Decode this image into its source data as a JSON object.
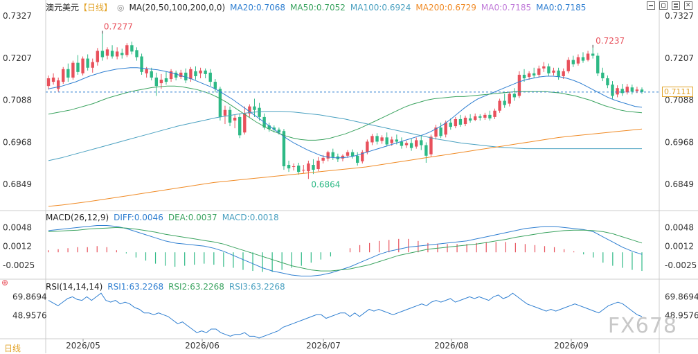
{
  "chart_data": {
    "type": "candlestick",
    "symbol": "澳元美元",
    "period_tag": "【日线】",
    "period_bottom": "日线",
    "x_ticks": [
      "2026/05",
      "2026/06",
      "2026/07",
      "2026/08",
      "2026/09"
    ],
    "price_axis": {
      "ticks": [
        "0.7327",
        "0.7207",
        "0.7088",
        "0.6968",
        "0.6849"
      ],
      "ylim": [
        0.6778,
        0.7337
      ]
    },
    "last_price": "0.7111",
    "high_label": "0.7277",
    "low_label": "0.6864",
    "recent_high_label": "0.7237",
    "ma_header": "MA(20,50,100,200,0,0)",
    "ma_values": [
      {
        "label": "MA20:0.7068",
        "color": "#2f7fd1"
      },
      {
        "label": "MA50:0.7052",
        "color": "#3aa35f"
      },
      {
        "label": "MA100:0.6924",
        "color": "#49a0c0"
      },
      {
        "label": "MA200:0.6729",
        "color": "#f08a24"
      },
      {
        "label": "MA0:0.7185",
        "color": "#c07bd9"
      },
      {
        "label": "MA0:0.7185",
        "color": "#2f7fd1"
      }
    ],
    "candles": [
      [
        0.7128,
        0.7158,
        0.715,
        0.7118
      ],
      [
        0.714,
        0.7164,
        0.7152,
        0.7132
      ],
      [
        0.712,
        0.7152,
        0.7144,
        0.7112
      ],
      [
        0.714,
        0.7182,
        0.7176,
        0.7134
      ],
      [
        0.7176,
        0.7192,
        0.7152,
        0.714
      ],
      [
        0.7152,
        0.72,
        0.7194,
        0.7146
      ],
      [
        0.7194,
        0.7216,
        0.7168,
        0.716
      ],
      [
        0.7164,
        0.7212,
        0.7206,
        0.7158
      ],
      [
        0.7206,
        0.7218,
        0.718,
        0.7172
      ],
      [
        0.718,
        0.7206,
        0.7196,
        0.7166
      ],
      [
        0.7196,
        0.7236,
        0.7228,
        0.7186
      ],
      [
        0.7228,
        0.7277,
        0.721,
        0.72
      ],
      [
        0.7214,
        0.7238,
        0.7232,
        0.7204
      ],
      [
        0.7228,
        0.7244,
        0.7212,
        0.7206
      ],
      [
        0.7212,
        0.7238,
        0.7226,
        0.7204
      ],
      [
        0.7222,
        0.7234,
        0.7216,
        0.7206
      ],
      [
        0.7216,
        0.725,
        0.7244,
        0.721
      ],
      [
        0.7244,
        0.7254,
        0.7226,
        0.7218
      ],
      [
        0.723,
        0.7238,
        0.721,
        0.72
      ],
      [
        0.7212,
        0.722,
        0.7168,
        0.716
      ],
      [
        0.7164,
        0.7182,
        0.7176,
        0.7152
      ],
      [
        0.717,
        0.718,
        0.7152,
        0.7144
      ],
      [
        0.7152,
        0.7166,
        0.7128,
        0.71
      ],
      [
        0.7136,
        0.7162,
        0.7146,
        0.712
      ],
      [
        0.715,
        0.7168,
        0.714,
        0.7132
      ],
      [
        0.7148,
        0.7176,
        0.717,
        0.714
      ],
      [
        0.7166,
        0.7172,
        0.7152,
        0.7144
      ],
      [
        0.7154,
        0.7174,
        0.7166,
        0.7148
      ],
      [
        0.7166,
        0.7178,
        0.7144,
        0.7136
      ],
      [
        0.7148,
        0.7182,
        0.7176,
        0.714
      ],
      [
        0.717,
        0.7184,
        0.7156,
        0.7146
      ],
      [
        0.7164,
        0.718,
        0.7172,
        0.715
      ],
      [
        0.7172,
        0.7178,
        0.7162,
        0.715
      ],
      [
        0.7166,
        0.7176,
        0.714,
        0.7128
      ],
      [
        0.714,
        0.7148,
        0.712,
        0.711
      ],
      [
        0.712,
        0.7126,
        0.704,
        0.703
      ],
      [
        0.7044,
        0.7072,
        0.706,
        0.702
      ],
      [
        0.706,
        0.707,
        0.7024,
        0.7014
      ],
      [
        0.703,
        0.7046,
        0.7038,
        0.7008
      ],
      [
        0.704,
        0.705,
        0.6988,
        0.698
      ],
      [
        0.6996,
        0.707,
        0.705,
        0.699
      ],
      [
        0.705,
        0.7076,
        0.707,
        0.704
      ],
      [
        0.707,
        0.7092,
        0.706,
        0.704
      ],
      [
        0.7066,
        0.708,
        0.704,
        0.703
      ],
      [
        0.704,
        0.705,
        0.701,
        0.7004
      ],
      [
        0.7016,
        0.7024,
        0.7006,
        0.6998
      ],
      [
        0.701,
        0.7016,
        0.7004,
        0.6996
      ],
      [
        0.7004,
        0.701,
        0.6996,
        0.699
      ],
      [
        0.7,
        0.7006,
        0.69,
        0.689
      ],
      [
        0.6904,
        0.6916,
        0.6894,
        0.6884
      ],
      [
        0.6898,
        0.6908,
        0.69,
        0.6888
      ],
      [
        0.6902,
        0.691,
        0.6884,
        0.6876
      ],
      [
        0.6888,
        0.6904,
        0.689,
        0.688
      ],
      [
        0.6886,
        0.6916,
        0.6908,
        0.6864
      ],
      [
        0.6904,
        0.692,
        0.689,
        0.6878
      ],
      [
        0.6892,
        0.6926,
        0.6916,
        0.6886
      ],
      [
        0.6916,
        0.6932,
        0.6924,
        0.6908
      ],
      [
        0.6922,
        0.6944,
        0.694,
        0.6914
      ],
      [
        0.694,
        0.695,
        0.6926,
        0.6918
      ],
      [
        0.6928,
        0.6936,
        0.692,
        0.6912
      ],
      [
        0.6922,
        0.6934,
        0.693,
        0.6914
      ],
      [
        0.693,
        0.6946,
        0.694,
        0.6924
      ],
      [
        0.694,
        0.6948,
        0.6928,
        0.6922
      ],
      [
        0.693,
        0.694,
        0.691,
        0.6902
      ],
      [
        0.6914,
        0.6946,
        0.694,
        0.6908
      ],
      [
        0.694,
        0.6976,
        0.697,
        0.6934
      ],
      [
        0.6968,
        0.6992,
        0.6986,
        0.696
      ],
      [
        0.6986,
        0.6994,
        0.697,
        0.6962
      ],
      [
        0.6972,
        0.6988,
        0.6982,
        0.6964
      ],
      [
        0.6982,
        0.6996,
        0.6962,
        0.6956
      ],
      [
        0.6966,
        0.6984,
        0.6976,
        0.6958
      ],
      [
        0.6976,
        0.699,
        0.697,
        0.6962
      ],
      [
        0.697,
        0.6982,
        0.6958,
        0.695
      ],
      [
        0.696,
        0.6972,
        0.6966,
        0.6952
      ],
      [
        0.6966,
        0.6978,
        0.6952,
        0.6944
      ],
      [
        0.6956,
        0.6982,
        0.6974,
        0.695
      ],
      [
        0.6974,
        0.6988,
        0.696,
        0.6946
      ],
      [
        0.696,
        0.6968,
        0.693,
        0.691
      ],
      [
        0.6934,
        0.699,
        0.6984,
        0.6926
      ],
      [
        0.6984,
        0.7018,
        0.701,
        0.6976
      ],
      [
        0.701,
        0.7024,
        0.6986,
        0.698
      ],
      [
        0.699,
        0.703,
        0.7024,
        0.6982
      ],
      [
        0.7024,
        0.7036,
        0.7012,
        0.7004
      ],
      [
        0.7014,
        0.704,
        0.7034,
        0.7008
      ],
      [
        0.7034,
        0.7046,
        0.7018,
        0.7012
      ],
      [
        0.702,
        0.7044,
        0.7038,
        0.7014
      ],
      [
        0.7036,
        0.7048,
        0.703,
        0.7024
      ],
      [
        0.7032,
        0.705,
        0.7042,
        0.7028
      ],
      [
        0.7042,
        0.7048,
        0.7038,
        0.703
      ],
      [
        0.7038,
        0.7052,
        0.7046,
        0.7032
      ],
      [
        0.7046,
        0.7058,
        0.7036,
        0.703
      ],
      [
        0.704,
        0.7064,
        0.7058,
        0.7034
      ],
      [
        0.7058,
        0.7092,
        0.7086,
        0.7052
      ],
      [
        0.7086,
        0.7106,
        0.7074,
        0.7066
      ],
      [
        0.7078,
        0.7112,
        0.7106,
        0.707
      ],
      [
        0.7106,
        0.7122,
        0.7096,
        0.7086
      ],
      [
        0.71,
        0.717,
        0.716,
        0.7094
      ],
      [
        0.716,
        0.7176,
        0.715,
        0.714
      ],
      [
        0.7154,
        0.717,
        0.7164,
        0.7146
      ],
      [
        0.7164,
        0.718,
        0.7158,
        0.715
      ],
      [
        0.716,
        0.7186,
        0.7178,
        0.7152
      ],
      [
        0.7178,
        0.7196,
        0.7184,
        0.7168
      ],
      [
        0.7184,
        0.7192,
        0.7164,
        0.7156
      ],
      [
        0.7166,
        0.718,
        0.7172,
        0.7158
      ],
      [
        0.7172,
        0.718,
        0.7154,
        0.7146
      ],
      [
        0.7156,
        0.7178,
        0.717,
        0.7148
      ],
      [
        0.717,
        0.721,
        0.7202,
        0.7164
      ],
      [
        0.7202,
        0.7214,
        0.719,
        0.7182
      ],
      [
        0.7192,
        0.7218,
        0.721,
        0.7186
      ],
      [
        0.721,
        0.7224,
        0.72,
        0.7194
      ],
      [
        0.7202,
        0.7228,
        0.722,
        0.7198
      ],
      [
        0.722,
        0.7237,
        0.7214,
        0.7206
      ],
      [
        0.7214,
        0.7222,
        0.7164,
        0.7156
      ],
      [
        0.7166,
        0.718,
        0.715,
        0.7142
      ],
      [
        0.715,
        0.7158,
        0.713,
        0.7122
      ],
      [
        0.7132,
        0.7142,
        0.71,
        0.7092
      ],
      [
        0.7104,
        0.713,
        0.7122,
        0.7096
      ],
      [
        0.712,
        0.7134,
        0.7108,
        0.71
      ],
      [
        0.711,
        0.7134,
        0.7126,
        0.7104
      ],
      [
        0.7124,
        0.7132,
        0.7112,
        0.7104
      ],
      [
        0.7114,
        0.7126,
        0.7118,
        0.7108
      ],
      [
        0.7118,
        0.7124,
        0.7111,
        0.7106
      ]
    ],
    "ma20": [
      0.712,
      0.7124,
      0.7128,
      0.7134,
      0.714,
      0.7148,
      0.7156,
      0.7162,
      0.7168,
      0.7172,
      0.7176,
      0.7178,
      0.718,
      0.718,
      0.7178,
      0.7176,
      0.7174,
      0.717,
      0.7166,
      0.716,
      0.7154,
      0.7148,
      0.714,
      0.7132,
      0.7124,
      0.7114,
      0.7102,
      0.709,
      0.7076,
      0.7062,
      0.7048,
      0.7034,
      0.702,
      0.7006,
      0.6992,
      0.6978,
      0.6966,
      0.6956,
      0.6946,
      0.6938,
      0.693,
      0.6926,
      0.6924,
      0.6924,
      0.6926,
      0.693,
      0.6936,
      0.6942,
      0.6948,
      0.6954,
      0.696,
      0.6966,
      0.6972,
      0.6978,
      0.6984,
      0.699,
      0.6998,
      0.7008,
      0.702,
      0.7034,
      0.705,
      0.7066,
      0.708,
      0.7092,
      0.71,
      0.7108,
      0.7116,
      0.7124,
      0.7132,
      0.714,
      0.7146,
      0.715,
      0.7154,
      0.7156,
      0.7156,
      0.7154,
      0.715,
      0.7144,
      0.7136,
      0.7126,
      0.7116,
      0.7106,
      0.7096,
      0.7088,
      0.7082,
      0.7076,
      0.707,
      0.7068
    ],
    "ma50": [
      0.7048,
      0.7052,
      0.7056,
      0.706,
      0.7066,
      0.7072,
      0.7078,
      0.7086,
      0.7094,
      0.71,
      0.7106,
      0.7112,
      0.7116,
      0.712,
      0.7124,
      0.7126,
      0.7128,
      0.7128,
      0.7126,
      0.7122,
      0.7118,
      0.7112,
      0.7104,
      0.7094,
      0.7082,
      0.7068,
      0.7054,
      0.704,
      0.7026,
      0.7014,
      0.7002,
      0.6994,
      0.6986,
      0.698,
      0.6976,
      0.6974,
      0.6974,
      0.6976,
      0.698,
      0.6986,
      0.6992,
      0.7,
      0.7008,
      0.7018,
      0.7028,
      0.7038,
      0.7048,
      0.7058,
      0.7068,
      0.7076,
      0.7082,
      0.7088,
      0.7092,
      0.7094,
      0.7096,
      0.7098,
      0.7098,
      0.71,
      0.7102,
      0.7104,
      0.7106,
      0.7108,
      0.711,
      0.7112,
      0.7112,
      0.7112,
      0.7112,
      0.7112,
      0.711,
      0.7108,
      0.7104,
      0.71,
      0.7094,
      0.7088,
      0.708,
      0.7072,
      0.7066,
      0.706,
      0.7056,
      0.7054,
      0.7052
    ],
    "ma100": [
      0.6916,
      0.6924,
      0.6934,
      0.6944,
      0.6954,
      0.6964,
      0.6974,
      0.6984,
      0.6994,
      0.7004,
      0.7014,
      0.7022,
      0.703,
      0.7038,
      0.7044,
      0.705,
      0.7054,
      0.7056,
      0.7056,
      0.7054,
      0.705,
      0.7046,
      0.704,
      0.7034,
      0.7026,
      0.7018,
      0.701,
      0.7002,
      0.6994,
      0.6986,
      0.6978,
      0.6972,
      0.6966,
      0.6962,
      0.6958,
      0.6954,
      0.6952,
      0.695,
      0.695,
      0.695,
      0.695,
      0.695,
      0.695,
      0.695,
      0.695,
      0.695,
      0.695
    ],
    "ma200": [
      0.6786,
      0.679,
      0.6795,
      0.68,
      0.6806,
      0.6812,
      0.6818,
      0.6824,
      0.683,
      0.6836,
      0.6842,
      0.6848,
      0.6854,
      0.6858,
      0.6862,
      0.6866,
      0.687,
      0.6874,
      0.6878,
      0.6882,
      0.6886,
      0.689,
      0.6894,
      0.6898,
      0.6904,
      0.691,
      0.6916,
      0.6922,
      0.6928,
      0.6934,
      0.694,
      0.6946,
      0.6952,
      0.6958,
      0.6964,
      0.697,
      0.6976,
      0.6982,
      0.6986,
      0.699,
      0.6994,
      0.6998,
      0.7002,
      0.7006
    ],
    "macd_header": "MACD(26,12,9)",
    "macd_labels": [
      {
        "text": "DIFF:0.0046",
        "color": "#2f7fd1"
      },
      {
        "text": "DEA:0.0037",
        "color": "#3aa35f"
      },
      {
        "text": "MACD:0.0018",
        "color": "#49a0c0"
      }
    ],
    "macd_ticks": [
      "0.0048",
      "0.0012",
      "-0.0025"
    ],
    "macd_ylim": [
      -0.0048,
      0.0062
    ],
    "diff": [
      0.0042,
      0.0044,
      0.0046,
      0.0048,
      0.005,
      0.0052,
      0.0052,
      0.005,
      0.0046,
      0.004,
      0.0034,
      0.0028,
      0.0022,
      0.0018,
      0.0016,
      0.0014,
      0.0012,
      0.0008,
      0.0002,
      -0.0006,
      -0.0014,
      -0.0022,
      -0.003,
      -0.0036,
      -0.004,
      -0.0044,
      -0.0046,
      -0.0046,
      -0.0044,
      -0.004,
      -0.0034,
      -0.0028,
      -0.002,
      -0.0012,
      -0.0004,
      0.0002,
      0.0006,
      0.001,
      0.0012,
      0.0014,
      0.0016,
      0.0018,
      0.002,
      0.0022,
      0.0026,
      0.003,
      0.0034,
      0.0038,
      0.0042,
      0.0046,
      0.0048,
      0.005,
      0.005,
      0.0048,
      0.0046,
      0.0044,
      0.004,
      0.003,
      0.002,
      0.001,
      0.0002,
      -0.0004
    ],
    "dea": [
      0.004,
      0.0041,
      0.0042,
      0.0043,
      0.0045,
      0.0046,
      0.0047,
      0.0048,
      0.0047,
      0.0045,
      0.0042,
      0.0039,
      0.0035,
      0.0032,
      0.0029,
      0.0026,
      0.0023,
      0.002,
      0.0016,
      0.001,
      0.0004,
      -0.0002,
      -0.0008,
      -0.0014,
      -0.002,
      -0.0026,
      -0.003,
      -0.0034,
      -0.0036,
      -0.0036,
      -0.0034,
      -0.0032,
      -0.0028,
      -0.0024,
      -0.0018,
      -0.0012,
      -0.0006,
      -0.0002,
      0.0002,
      0.0006,
      0.0008,
      0.001,
      0.0012,
      0.0014,
      0.0016,
      0.0019,
      0.0022,
      0.0025,
      0.0029,
      0.0032,
      0.0035,
      0.0038,
      0.004,
      0.0042,
      0.0043,
      0.0043,
      0.0042,
      0.004,
      0.0036,
      0.003,
      0.0024,
      0.0018
    ],
    "hist": [
      0.0004,
      0.0006,
      0.0008,
      0.001,
      0.001,
      0.0012,
      0.001,
      0.0004,
      -0.0002,
      -0.001,
      -0.0016,
      -0.0022,
      -0.0026,
      -0.0028,
      -0.0026,
      -0.0024,
      -0.0022,
      -0.0024,
      -0.0028,
      -0.003,
      -0.0034,
      -0.0036,
      -0.0038,
      -0.0038,
      -0.0034,
      -0.003,
      -0.0026,
      -0.002,
      -0.0014,
      -0.0008,
      0.0,
      0.0008,
      0.0014,
      0.0018,
      0.0022,
      0.0024,
      0.0026,
      0.0026,
      0.0022,
      0.0018,
      0.0016,
      0.0016,
      0.0016,
      0.0016,
      0.0018,
      0.002,
      0.002,
      0.002,
      0.0018,
      0.0016,
      0.0014,
      0.0012,
      0.001,
      0.0006,
      0.0002,
      -0.0004,
      -0.001,
      -0.002,
      -0.0026,
      -0.003,
      -0.0034,
      -0.0036
    ],
    "rsi_header": "RSI(14,14,14)",
    "rsi_labels": [
      {
        "text": "RSI1:63.2268",
        "color": "#2f7fd1"
      },
      {
        "text": "RSI2:63.2268",
        "color": "#3aa35f"
      },
      {
        "text": "RSI3:63.2268",
        "color": "#49a0c0"
      }
    ],
    "rsi_ticks": [
      "69.8694",
      "48.9576"
    ],
    "rsi_ylim": [
      24,
      78
    ],
    "rsi": [
      66,
      63,
      60,
      64,
      68,
      70,
      67,
      66,
      70,
      66,
      70,
      74,
      66,
      64,
      66,
      62,
      64,
      62,
      58,
      56,
      52,
      52,
      50,
      52,
      50,
      48,
      44,
      40,
      42,
      38,
      34,
      30,
      32,
      30,
      34,
      34,
      30,
      28,
      26,
      28,
      28,
      30,
      26,
      26,
      24,
      26,
      28,
      30,
      32,
      36,
      38,
      40,
      42,
      44,
      46,
      48,
      50,
      50,
      46,
      48,
      50,
      52,
      52,
      48,
      52,
      48,
      52,
      56,
      54,
      56,
      54,
      52,
      50,
      52,
      54,
      56,
      58,
      60,
      62,
      60,
      64,
      66,
      64,
      66,
      68,
      64,
      66,
      68,
      70,
      68,
      70,
      68,
      66,
      70,
      72,
      68,
      70,
      74,
      70,
      66,
      62,
      60,
      58,
      56,
      54,
      56,
      54,
      56,
      58,
      60,
      62,
      60,
      58,
      56,
      54,
      52,
      56,
      60,
      62,
      64,
      62,
      58,
      54,
      50,
      48
    ]
  },
  "toolbar": {
    "icons": [
      "minimize-icon",
      "maximize-icon",
      "layout-icon",
      "close-icon"
    ]
  },
  "watermark": "FX678",
  "colors": {
    "up": "#e8505b",
    "down": "#2db985",
    "grid": "#e3e3e3",
    "axis_text": "#333333"
  }
}
